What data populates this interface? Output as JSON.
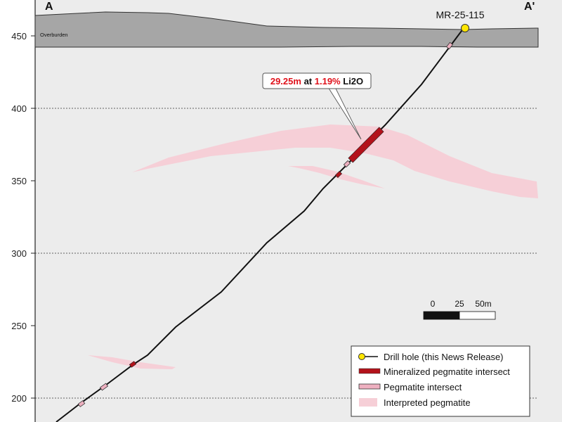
{
  "section": {
    "label_left": "A",
    "label_right": "A'"
  },
  "elevation_axis": {
    "ticks": [
      450,
      400,
      350,
      300,
      250,
      200
    ]
  },
  "overburden": {
    "label": "Overburden",
    "fill": "#a6a6a6"
  },
  "drill_hole": {
    "id": "MR-25-115",
    "collar_color": "#ffe600"
  },
  "callout": {
    "length": "29.25m",
    "at": "at",
    "grade": "1.19%",
    "unit": "Li2O",
    "highlight_color": "#e0101a"
  },
  "scale_bar": {
    "labels": [
      "0",
      "25",
      "50m"
    ]
  },
  "legend": {
    "items": [
      {
        "label": "Drill hole (this News Release)",
        "icon": "drill-hole-icon"
      },
      {
        "label": "Mineralized pegmatite intersect",
        "icon": "mineralized-intersect-icon",
        "color": "#b3121b"
      },
      {
        "label": "Pegmatite intersect",
        "icon": "pegmatite-intersect-icon",
        "color": "#eeb0c0"
      },
      {
        "label": "Interpreted pegmatite",
        "icon": "interpreted-pegmatite-icon",
        "color": "#f6cfd7"
      }
    ]
  },
  "colors": {
    "background": "#ececec",
    "interpreted_pegmatite": "#f6cfd7",
    "mineralized": "#b3121b",
    "pegmatite": "#eeb0c0"
  }
}
